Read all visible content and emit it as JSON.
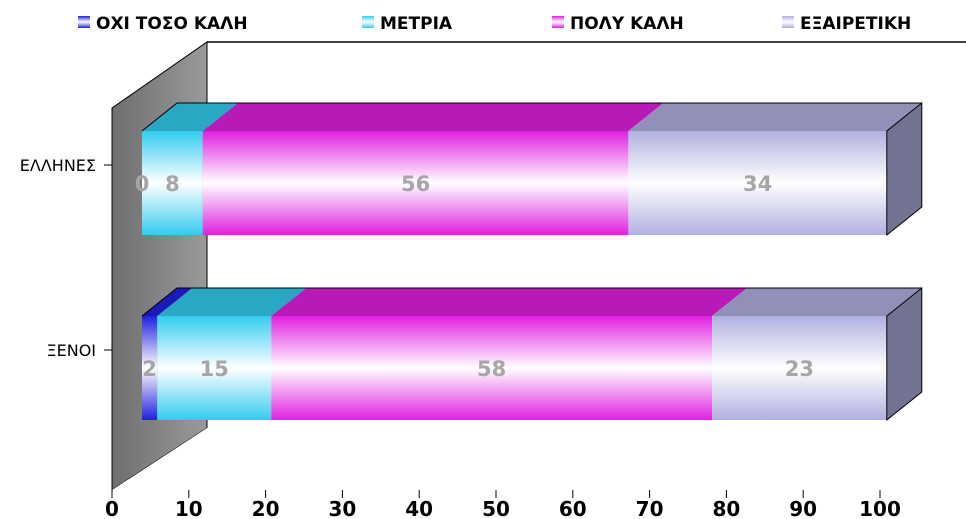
{
  "chart_data": {
    "type": "bar",
    "orientation": "horizontal",
    "stacked": true,
    "three_d": true,
    "categories": [
      "ΕΛΛΗΝΕΣ",
      "ΞΕΝΟΙ"
    ],
    "series": [
      {
        "name": "ΟΧΙ ΤΟΣΟ ΚΑΛΗ",
        "values": [
          0,
          2
        ],
        "color": "#2020e0"
      },
      {
        "name": "ΜΕΤΡΙΑ",
        "values": [
          8,
          15
        ],
        "color": "#33ccee"
      },
      {
        "name": "ΠΟΛΥ ΚΑΛΗ",
        "values": [
          56,
          58
        ],
        "color": "#e020e0"
      },
      {
        "name": "ΕΞΑΙΡΕΤΙΚΗ",
        "values": [
          34,
          23
        ],
        "color": "#b0b0e0"
      }
    ],
    "xlim": [
      0,
      100
    ],
    "xticks": [
      "0",
      "10",
      "20",
      "30",
      "40",
      "50",
      "60",
      "70",
      "80",
      "90",
      "100"
    ],
    "legend_position": "top",
    "grid": false,
    "data_labels": true
  }
}
